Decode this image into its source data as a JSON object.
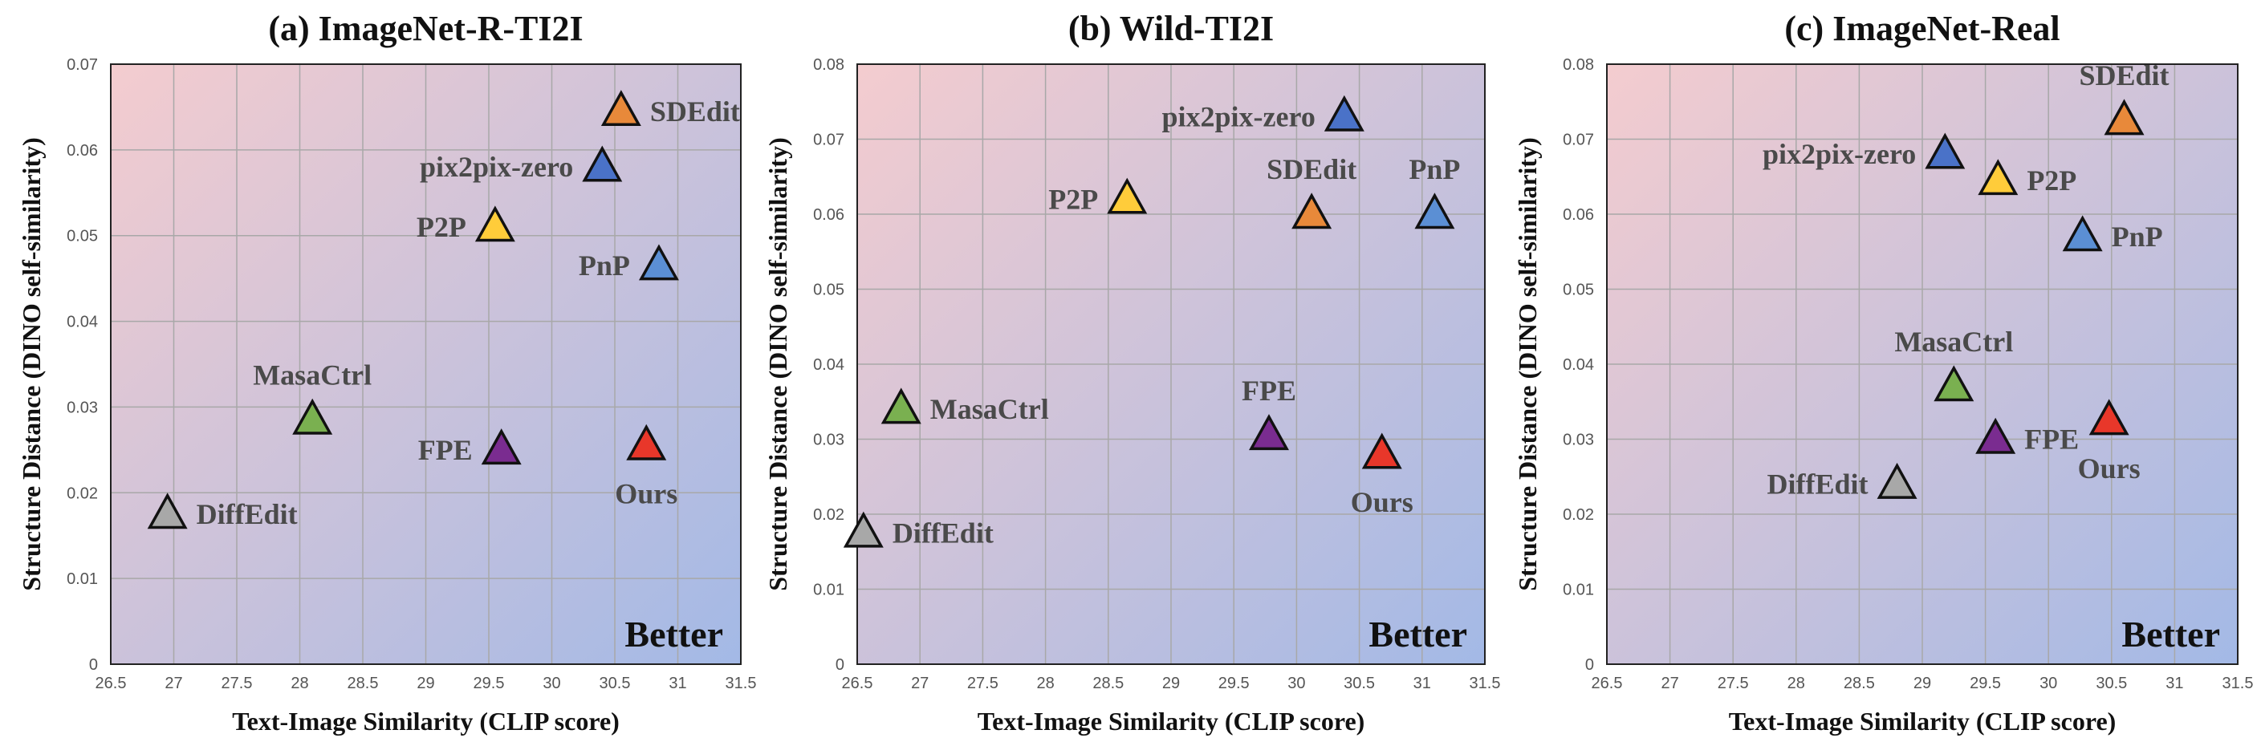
{
  "chart_data": [
    {
      "type": "scatter",
      "title": "(a) ImageNet-R-TI2I",
      "xlabel": "Text-Image Similarity (CLIP score)",
      "ylabel": "Structure Distance (DINO self-similarity)",
      "xlim": [
        26.5,
        31.5
      ],
      "ylim": [
        0,
        0.07
      ],
      "xticks": [
        "26.5",
        "27",
        "27.5",
        "28",
        "28.5",
        "29",
        "29.5",
        "30",
        "30.5",
        "31",
        "31.5"
      ],
      "yticks": [
        "0",
        "0.01",
        "0.02",
        "0.03",
        "0.04",
        "0.05",
        "0.06",
        "0.07"
      ],
      "grid": true,
      "annotation": "Better",
      "points": [
        {
          "name": "SDEdit",
          "x": 30.55,
          "y": 0.0645,
          "color": "#E8893A",
          "label_pos": "right"
        },
        {
          "name": "pix2pix-zero",
          "x": 30.4,
          "y": 0.058,
          "color": "#4A72C8",
          "label_pos": "left"
        },
        {
          "name": "P2P",
          "x": 29.55,
          "y": 0.051,
          "color": "#FFCC3A",
          "label_pos": "left"
        },
        {
          "name": "PnP",
          "x": 30.85,
          "y": 0.0465,
          "color": "#5B8FD4",
          "label_pos": "left"
        },
        {
          "name": "MasaCtrl",
          "x": 28.1,
          "y": 0.0285,
          "color": "#7AB050",
          "label_pos": "above"
        },
        {
          "name": "FPE",
          "x": 29.6,
          "y": 0.025,
          "color": "#7A2C90",
          "label_pos": "left"
        },
        {
          "name": "Ours",
          "x": 30.75,
          "y": 0.0255,
          "color": "#E8372A",
          "label_pos": "below"
        },
        {
          "name": "DiffEdit",
          "x": 26.95,
          "y": 0.0175,
          "color": "#A8A8A8",
          "label_pos": "right"
        }
      ]
    },
    {
      "type": "scatter",
      "title": "(b) Wild-TI2I",
      "xlabel": "Text-Image Similarity (CLIP score)",
      "ylabel": "Structure Distance (DINO self-similarity)",
      "xlim": [
        26.5,
        31.5
      ],
      "ylim": [
        0,
        0.08
      ],
      "xticks": [
        "26.5",
        "27",
        "27.5",
        "28",
        "28.5",
        "29",
        "29.5",
        "30",
        "30.5",
        "31",
        "31.5"
      ],
      "yticks": [
        "0",
        "0.01",
        "0.02",
        "0.03",
        "0.04",
        "0.05",
        "0.06",
        "0.07",
        "0.08"
      ],
      "grid": true,
      "annotation": "Better",
      "points": [
        {
          "name": "pix2pix-zero",
          "x": 30.38,
          "y": 0.073,
          "color": "#4A72C8",
          "label_pos": "left"
        },
        {
          "name": "P2P",
          "x": 28.65,
          "y": 0.062,
          "color": "#FFCC3A",
          "label_pos": "left"
        },
        {
          "name": "SDEdit",
          "x": 30.12,
          "y": 0.06,
          "color": "#E8893A",
          "label_pos": "above"
        },
        {
          "name": "PnP",
          "x": 31.1,
          "y": 0.06,
          "color": "#5B8FD4",
          "label_pos": "above"
        },
        {
          "name": "MasaCtrl",
          "x": 26.85,
          "y": 0.034,
          "color": "#7AB050",
          "label_pos": "right"
        },
        {
          "name": "FPE",
          "x": 29.78,
          "y": 0.0305,
          "color": "#7A2C90",
          "label_pos": "above"
        },
        {
          "name": "Ours",
          "x": 30.68,
          "y": 0.028,
          "color": "#E8372A",
          "label_pos": "below"
        },
        {
          "name": "DiffEdit",
          "x": 26.55,
          "y": 0.0175,
          "color": "#A8A8A8",
          "label_pos": "right"
        }
      ]
    },
    {
      "type": "scatter",
      "title": "(c) ImageNet-Real",
      "xlabel": "Text-Image Similarity (CLIP score)",
      "ylabel": "Structure Distance (DINO self-similarity)",
      "xlim": [
        26.5,
        31.5
      ],
      "ylim": [
        0,
        0.08
      ],
      "xticks": [
        "26.5",
        "27",
        "27.5",
        "28",
        "28.5",
        "29",
        "29.5",
        "30",
        "30.5",
        "31",
        "31.5"
      ],
      "yticks": [
        "0",
        "0.01",
        "0.02",
        "0.03",
        "0.04",
        "0.05",
        "0.06",
        "0.07",
        "0.08"
      ],
      "grid": true,
      "annotation": "Better",
      "points": [
        {
          "name": "SDEdit",
          "x": 30.6,
          "y": 0.0725,
          "color": "#E8893A",
          "label_pos": "above"
        },
        {
          "name": "pix2pix-zero",
          "x": 29.18,
          "y": 0.068,
          "color": "#4A72C8",
          "label_pos": "left"
        },
        {
          "name": "P2P",
          "x": 29.6,
          "y": 0.0645,
          "color": "#FFCC3A",
          "label_pos": "right"
        },
        {
          "name": "PnP",
          "x": 30.27,
          "y": 0.057,
          "color": "#5B8FD4",
          "label_pos": "right"
        },
        {
          "name": "MasaCtrl",
          "x": 29.25,
          "y": 0.037,
          "color": "#7AB050",
          "label_pos": "above"
        },
        {
          "name": "FPE",
          "x": 29.58,
          "y": 0.03,
          "color": "#7A2C90",
          "label_pos": "right"
        },
        {
          "name": "Ours",
          "x": 30.48,
          "y": 0.0325,
          "color": "#E8372A",
          "label_pos": "below"
        },
        {
          "name": "DiffEdit",
          "x": 28.8,
          "y": 0.024,
          "color": "#A8A8A8",
          "label_pos": "left"
        }
      ]
    }
  ],
  "colors": {
    "gradient_top_left": "#F4CCCF",
    "gradient_bottom_right": "#A3B9E6",
    "grid": "#A8A8A8",
    "frame": "#222222"
  }
}
